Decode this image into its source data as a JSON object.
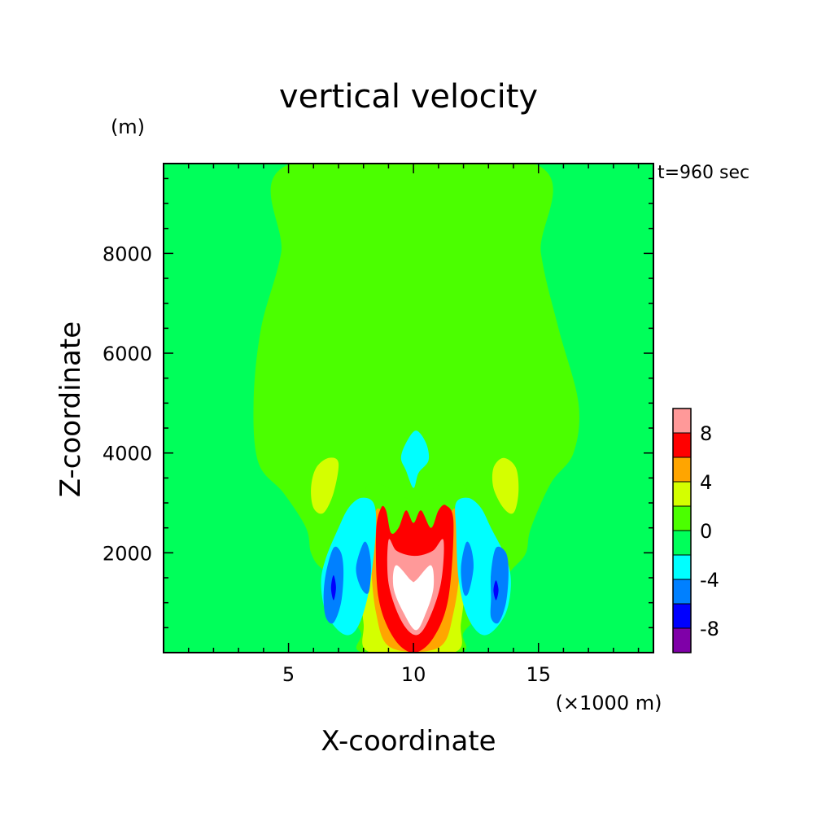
{
  "chart_data": {
    "type": "heatmap",
    "title": "vertical velocity",
    "xlabel": "X-coordinate",
    "ylabel": "Z-coordinate",
    "x_unit": "(×1000 m)",
    "y_unit": "(m)",
    "time_label": "t=960 sec",
    "xlim": [
      0,
      19.6
    ],
    "ylim": [
      0,
      9800
    ],
    "x_ticks": [
      5,
      10,
      15
    ],
    "y_ticks": [
      2000,
      4000,
      6000,
      8000
    ],
    "colorbar": {
      "levels": [
        -10,
        -8,
        -6,
        -4,
        -2,
        0,
        2,
        4,
        6,
        8,
        10
      ],
      "colors": [
        "#7f00a8",
        "#0000ff",
        "#0080ff",
        "#00ffff",
        "#00ff5a",
        "#4bff00",
        "#d4ff00",
        "#ffa500",
        "#ff0000",
        "#ff9999"
      ],
      "labels": [
        "-8",
        "-4",
        "0",
        "4",
        "8"
      ],
      "label_values": [
        -8,
        -4,
        0,
        4,
        8
      ]
    },
    "regions": [
      {
        "name": "plume-upper",
        "level": 0,
        "points": [
          [
            5.1,
            9800
          ],
          [
            14.8,
            9800
          ],
          [
            15.1,
            8000
          ],
          [
            15.8,
            6500
          ],
          [
            16.6,
            5000
          ],
          [
            16.4,
            4000
          ],
          [
            15.5,
            3400
          ],
          [
            14.7,
            2500
          ],
          [
            14.5,
            2000
          ],
          [
            14.0,
            1700
          ],
          [
            13.2,
            1300
          ],
          [
            12.4,
            1500
          ],
          [
            12.2,
            2200
          ],
          [
            11.5,
            2900
          ],
          [
            10.2,
            2950
          ],
          [
            8.5,
            2900
          ],
          [
            7.8,
            2200
          ],
          [
            7.2,
            1500
          ],
          [
            6.3,
            1700
          ],
          [
            5.9,
            2000
          ],
          [
            5.7,
            2500
          ],
          [
            4.8,
            3200
          ],
          [
            3.8,
            3800
          ],
          [
            3.6,
            5000
          ],
          [
            3.9,
            6500
          ],
          [
            4.7,
            8000
          ]
        ]
      },
      {
        "name": "plume-lower",
        "level": 0,
        "points": [
          [
            8.1,
            3300
          ],
          [
            8.5,
            3400
          ],
          [
            9.2,
            3250
          ],
          [
            10.0,
            3050
          ],
          [
            10.7,
            3250
          ],
          [
            11.4,
            3450
          ],
          [
            12.1,
            3300
          ],
          [
            12.6,
            2500
          ],
          [
            13.0,
            1800
          ],
          [
            12.8,
            900
          ],
          [
            12.0,
            400
          ],
          [
            11.8,
            0
          ],
          [
            8.0,
            0
          ],
          [
            7.9,
            400
          ],
          [
            7.3,
            900
          ],
          [
            7.0,
            1800
          ],
          [
            7.6,
            2500
          ]
        ]
      },
      {
        "name": "updraft-yellow",
        "level": 2,
        "points": [
          [
            8.1,
            2350
          ],
          [
            8.6,
            2400
          ],
          [
            9.2,
            2050
          ],
          [
            9.8,
            1900
          ],
          [
            10.4,
            1900
          ],
          [
            11.0,
            2050
          ],
          [
            11.6,
            2400
          ],
          [
            12.0,
            2350
          ],
          [
            12.1,
            1600
          ],
          [
            11.9,
            600
          ],
          [
            11.6,
            0
          ],
          [
            8.3,
            0
          ],
          [
            8.0,
            600
          ],
          [
            7.9,
            1600
          ]
        ]
      },
      {
        "name": "updraft-orange",
        "level": 4,
        "points": [
          [
            8.5,
            2850
          ],
          [
            8.9,
            2700
          ],
          [
            9.2,
            2250
          ],
          [
            9.8,
            2050
          ],
          [
            10.4,
            2050
          ],
          [
            11.1,
            2250
          ],
          [
            11.4,
            2700
          ],
          [
            11.7,
            2850
          ],
          [
            11.9,
            2000
          ],
          [
            11.6,
            800
          ],
          [
            11.0,
            100
          ],
          [
            9.1,
            100
          ],
          [
            8.5,
            800
          ],
          [
            8.3,
            2000
          ]
        ]
      },
      {
        "name": "updraft-red",
        "level": 6,
        "points": [
          [
            8.7,
            2900
          ],
          [
            8.9,
            2850
          ],
          [
            9.1,
            2400
          ],
          [
            9.4,
            2500
          ],
          [
            9.7,
            2850
          ],
          [
            10.0,
            2600
          ],
          [
            10.3,
            2850
          ],
          [
            10.7,
            2500
          ],
          [
            11.0,
            2850
          ],
          [
            11.3,
            2950
          ],
          [
            11.6,
            2600
          ],
          [
            11.4,
            1100
          ],
          [
            10.8,
            300
          ],
          [
            10.0,
            0
          ],
          [
            9.2,
            300
          ],
          [
            8.6,
            1100
          ],
          [
            8.5,
            2400
          ]
        ]
      },
      {
        "name": "updraft-pink",
        "level": 8,
        "points": [
          [
            9.0,
            2250
          ],
          [
            9.3,
            2050
          ],
          [
            9.8,
            1950
          ],
          [
            10.3,
            1950
          ],
          [
            10.8,
            2050
          ],
          [
            11.2,
            2250
          ],
          [
            11.1,
            1400
          ],
          [
            10.6,
            650
          ],
          [
            10.1,
            350
          ],
          [
            9.5,
            650
          ],
          [
            9.0,
            1400
          ]
        ]
      },
      {
        "name": "updraft-core",
        "level": 10,
        "points": [
          [
            9.3,
            1750
          ],
          [
            9.9,
            1450
          ],
          [
            10.1,
            1450
          ],
          [
            10.7,
            1750
          ],
          [
            10.8,
            1300
          ],
          [
            10.5,
            800
          ],
          [
            10.1,
            450
          ],
          [
            9.6,
            800
          ],
          [
            9.2,
            1300
          ]
        ]
      },
      {
        "name": "cap-cyan",
        "level": -4,
        "points": [
          [
            9.7,
            4200
          ],
          [
            10.1,
            4450
          ],
          [
            10.5,
            4200
          ],
          [
            10.6,
            3850
          ],
          [
            10.2,
            3600
          ],
          [
            10.0,
            3300
          ],
          [
            9.7,
            3650
          ],
          [
            9.5,
            3900
          ]
        ]
      },
      {
        "name": "left-yellow-blob",
        "level": 2,
        "points": [
          [
            6.1,
            3700
          ],
          [
            6.6,
            3900
          ],
          [
            7.0,
            3800
          ],
          [
            6.8,
            3200
          ],
          [
            6.4,
            2800
          ],
          [
            6.0,
            2900
          ],
          [
            5.9,
            3300
          ]
        ]
      },
      {
        "name": "right-yellow-blob",
        "level": 2,
        "points": [
          [
            13.2,
            3700
          ],
          [
            13.6,
            3900
          ],
          [
            14.1,
            3700
          ],
          [
            14.2,
            3200
          ],
          [
            14.0,
            2800
          ],
          [
            13.6,
            2900
          ],
          [
            13.2,
            3300
          ]
        ]
      },
      {
        "name": "left-downdraft-cyan",
        "level": -4,
        "points": [
          [
            7.9,
            3100
          ],
          [
            8.4,
            3000
          ],
          [
            8.5,
            2500
          ],
          [
            8.3,
            1500
          ],
          [
            8.0,
            800
          ],
          [
            7.6,
            400
          ],
          [
            7.1,
            400
          ],
          [
            6.5,
            800
          ],
          [
            6.3,
            1400
          ],
          [
            6.5,
            1900
          ],
          [
            7.0,
            2500
          ],
          [
            7.4,
            2900
          ]
        ]
      },
      {
        "name": "right-downdraft-cyan",
        "level": -4,
        "points": [
          [
            12.2,
            3100
          ],
          [
            11.7,
            3000
          ],
          [
            11.7,
            2500
          ],
          [
            11.8,
            1500
          ],
          [
            12.1,
            800
          ],
          [
            12.6,
            400
          ],
          [
            13.1,
            400
          ],
          [
            13.7,
            800
          ],
          [
            13.9,
            1400
          ],
          [
            13.7,
            1900
          ],
          [
            13.1,
            2500
          ],
          [
            12.7,
            2900
          ]
        ]
      },
      {
        "name": "left-downdraft-blue",
        "level": -6,
        "points": [
          [
            6.8,
            2100
          ],
          [
            7.1,
            2000
          ],
          [
            7.2,
            1600
          ],
          [
            7.1,
            1000
          ],
          [
            6.8,
            600
          ],
          [
            6.5,
            700
          ],
          [
            6.4,
            1100
          ],
          [
            6.5,
            1600
          ]
        ]
      },
      {
        "name": "left-inner-blue",
        "level": -6,
        "points": [
          [
            8.0,
            2200
          ],
          [
            8.2,
            2100
          ],
          [
            8.3,
            1700
          ],
          [
            8.2,
            1200
          ],
          [
            7.9,
            1300
          ],
          [
            7.7,
            1700
          ]
        ]
      },
      {
        "name": "right-inner-blue",
        "level": -6,
        "points": [
          [
            12.1,
            2200
          ],
          [
            12.3,
            2100
          ],
          [
            12.4,
            1700
          ],
          [
            12.2,
            1200
          ],
          [
            12.0,
            1200
          ],
          [
            11.9,
            1700
          ]
        ]
      },
      {
        "name": "right-downdraft-blue",
        "level": -6,
        "points": [
          [
            13.3,
            2100
          ],
          [
            13.7,
            2000
          ],
          [
            13.8,
            1600
          ],
          [
            13.7,
            1000
          ],
          [
            13.4,
            600
          ],
          [
            13.1,
            700
          ],
          [
            13.1,
            1100
          ],
          [
            13.1,
            1600
          ]
        ]
      },
      {
        "name": "left-core-navy",
        "level": -8,
        "points": [
          [
            6.8,
            1550
          ],
          [
            6.9,
            1300
          ],
          [
            6.8,
            1050
          ],
          [
            6.7,
            1300
          ]
        ]
      },
      {
        "name": "right-core-navy",
        "level": -8,
        "points": [
          [
            13.3,
            1450
          ],
          [
            13.4,
            1250
          ],
          [
            13.3,
            1050
          ],
          [
            13.2,
            1250
          ]
        ]
      }
    ]
  }
}
